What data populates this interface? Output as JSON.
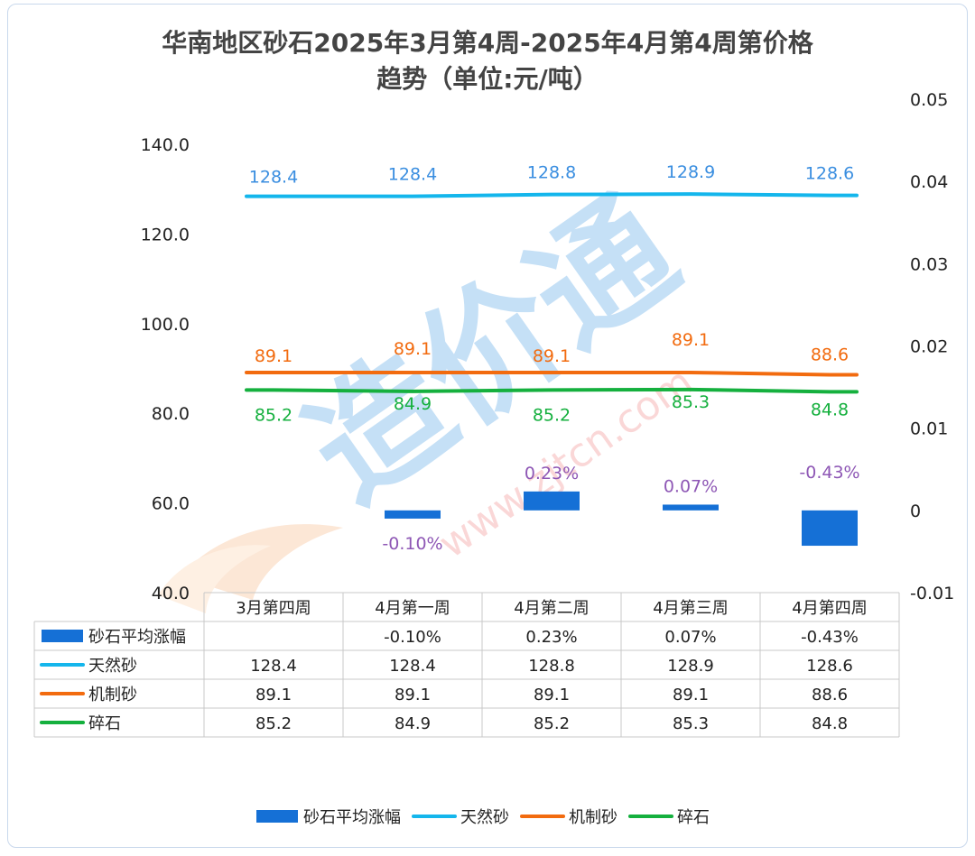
{
  "chart_data": {
    "type": "line",
    "title_line1": "华南地区砂石2025年3月第4周-2025年4月第4周第价格",
    "title_line2": "趋势（单位:元/吨）",
    "categories": [
      "3月第四周",
      "4月第一周",
      "4月第二周",
      "4月第三周",
      "4月第四周"
    ],
    "y_left": {
      "ticks": [
        "140.0",
        "120.0",
        "100.0",
        "80.0",
        "60.0",
        "40.0"
      ],
      "min": 40,
      "max": 140
    },
    "y_right": {
      "ticks": [
        "0.05",
        "0.04",
        "0.03",
        "0.02",
        "0.01",
        "0",
        "-0.01"
      ],
      "min": -0.01,
      "max": 0.05
    },
    "bar_series": {
      "name": "砂石平均涨幅",
      "axis": "right",
      "color": "#1570d6",
      "values": [
        null,
        -0.001,
        0.0023,
        0.0007,
        -0.0043
      ],
      "labels": [
        "",
        "-0.10%",
        "0.23%",
        "0.07%",
        "-0.43%"
      ],
      "label_color": "#8e57b5"
    },
    "series": [
      {
        "name": "天然砂",
        "axis": "left",
        "color": "#14b6ec",
        "label_color": "#3a8ee0",
        "values": [
          128.4,
          128.4,
          128.8,
          128.9,
          128.6
        ],
        "labels": [
          "128.4",
          "128.4",
          "128.8",
          "128.9",
          "128.6"
        ]
      },
      {
        "name": "机制砂",
        "axis": "left",
        "color": "#f26b0f",
        "label_color": "#f26b0f",
        "values": [
          89.1,
          89.1,
          89.1,
          89.1,
          88.6
        ],
        "labels": [
          "89.1",
          "89.1",
          "89.1",
          "89.1",
          "88.6"
        ]
      },
      {
        "name": "碎石",
        "axis": "left",
        "color": "#15b03e",
        "label_color": "#15b03e",
        "values": [
          85.2,
          84.9,
          85.2,
          85.3,
          84.8
        ],
        "labels": [
          "85.2",
          "84.9",
          "85.2",
          "85.3",
          "84.8"
        ]
      }
    ],
    "table": {
      "rows": [
        {
          "name": "砂石平均涨幅",
          "values": [
            "",
            "-0.10%",
            "0.23%",
            "0.07%",
            "-0.43%"
          ]
        },
        {
          "name": "天然砂",
          "values": [
            "128.4",
            "128.4",
            "128.8",
            "128.9",
            "128.6"
          ]
        },
        {
          "name": "机制砂",
          "values": [
            "89.1",
            "89.1",
            "89.1",
            "89.1",
            "88.6"
          ]
        },
        {
          "name": "碎石",
          "values": [
            "85.2",
            "84.9",
            "85.2",
            "85.3",
            "84.8"
          ]
        }
      ]
    },
    "legend": [
      "砂石平均涨幅",
      "天然砂",
      "机制砂",
      "碎石"
    ],
    "grid": false,
    "legend_position": "bottom"
  },
  "watermark": {
    "text": "造价通",
    "url": "www.zjtcn.com"
  }
}
